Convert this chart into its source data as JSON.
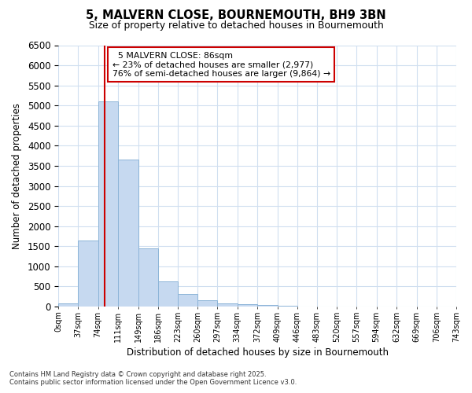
{
  "title_line1": "5, MALVERN CLOSE, BOURNEMOUTH, BH9 3BN",
  "title_line2": "Size of property relative to detached houses in Bournemouth",
  "xlabel": "Distribution of detached houses by size in Bournemouth",
  "ylabel": "Number of detached properties",
  "bar_color": "#c6d9f0",
  "bar_edge_color": "#8cb4d8",
  "vline_color": "#cc0000",
  "vline_x": 86,
  "annotation_title": "5 MALVERN CLOSE: 86sqm",
  "annotation_line2": "← 23% of detached houses are smaller (2,977)",
  "annotation_line3": "76% of semi-detached houses are larger (9,864) →",
  "bins": [
    0,
    37,
    74,
    111,
    149,
    186,
    223,
    260,
    297,
    334,
    372,
    409,
    446,
    483,
    520,
    557,
    594,
    632,
    669,
    706,
    743
  ],
  "counts": [
    75,
    1650,
    5100,
    3650,
    1450,
    620,
    310,
    150,
    85,
    55,
    30,
    15,
    8,
    0,
    0,
    0,
    0,
    0,
    0,
    0
  ],
  "ylim": [
    0,
    6500
  ],
  "yticks": [
    0,
    500,
    1000,
    1500,
    2000,
    2500,
    3000,
    3500,
    4000,
    4500,
    5000,
    5500,
    6000,
    6500
  ],
  "background_color": "#ffffff",
  "grid_color": "#d0dff0",
  "footnote_line1": "Contains HM Land Registry data © Crown copyright and database right 2025.",
  "footnote_line2": "Contains public sector information licensed under the Open Government Licence v3.0."
}
